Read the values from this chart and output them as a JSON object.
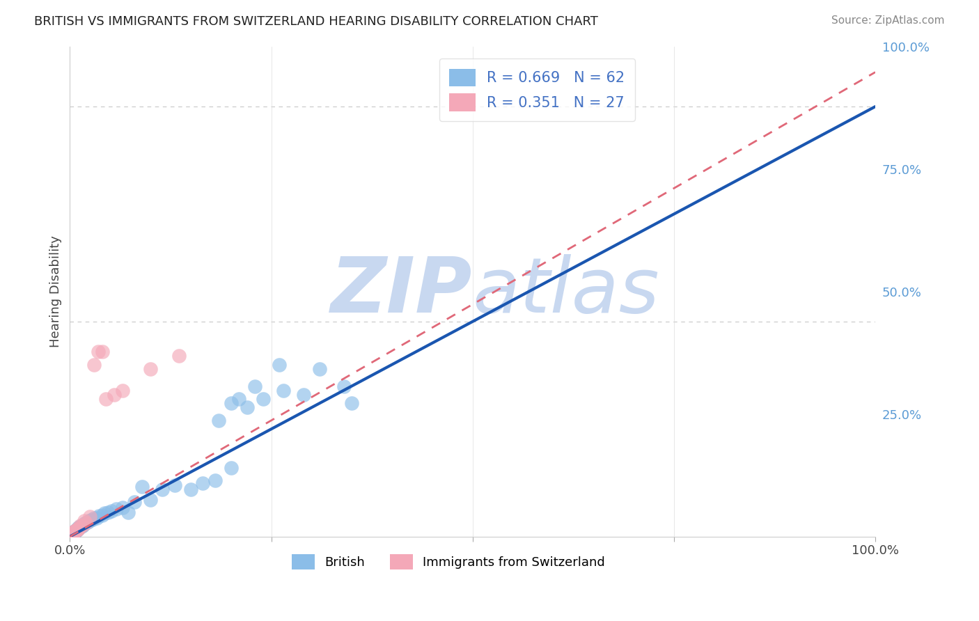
{
  "title": "BRITISH VS IMMIGRANTS FROM SWITZERLAND HEARING DISABILITY CORRELATION CHART",
  "source": "Source: ZipAtlas.com",
  "ylabel": "Hearing Disability",
  "xlim": [
    0,
    1.0
  ],
  "ylim": [
    0,
    0.57
  ],
  "british_R": 0.669,
  "british_N": 62,
  "swiss_R": 0.351,
  "swiss_N": 27,
  "british_color": "#8BBDE8",
  "swiss_color": "#F4A8B8",
  "british_line_color": "#1A56B0",
  "swiss_line_color": "#E06878",
  "background_color": "#FFFFFF",
  "watermark_color": "#C8D8F0",
  "grid_color": "#C8C8C8",
  "british_line_slope": 0.5,
  "british_line_intercept": 0.0,
  "swiss_line_slope": 0.55,
  "swiss_line_intercept": -0.01,
  "british_x": [
    0.001,
    0.002,
    0.002,
    0.003,
    0.003,
    0.004,
    0.004,
    0.005,
    0.005,
    0.005,
    0.006,
    0.006,
    0.007,
    0.007,
    0.008,
    0.008,
    0.009,
    0.01,
    0.01,
    0.011,
    0.012,
    0.013,
    0.014,
    0.015,
    0.016,
    0.018,
    0.02,
    0.022,
    0.024,
    0.026,
    0.028,
    0.03,
    0.033,
    0.036,
    0.04,
    0.043,
    0.047,
    0.052,
    0.058,
    0.065,
    0.072,
    0.08,
    0.09,
    0.1,
    0.115,
    0.13,
    0.15,
    0.165,
    0.18,
    0.2,
    0.22,
    0.24,
    0.265,
    0.29,
    0.31,
    0.34,
    0.185,
    0.2,
    0.21,
    0.23,
    0.26,
    0.35
  ],
  "british_y": [
    0.001,
    0.002,
    0.003,
    0.002,
    0.003,
    0.003,
    0.004,
    0.004,
    0.005,
    0.004,
    0.005,
    0.005,
    0.006,
    0.007,
    0.007,
    0.008,
    0.008,
    0.009,
    0.01,
    0.01,
    0.01,
    0.012,
    0.012,
    0.013,
    0.013,
    0.015,
    0.016,
    0.017,
    0.018,
    0.019,
    0.02,
    0.022,
    0.022,
    0.024,
    0.025,
    0.027,
    0.028,
    0.03,
    0.032,
    0.034,
    0.028,
    0.04,
    0.058,
    0.043,
    0.055,
    0.06,
    0.055,
    0.062,
    0.065,
    0.08,
    0.15,
    0.16,
    0.17,
    0.165,
    0.195,
    0.175,
    0.135,
    0.155,
    0.16,
    0.175,
    0.2,
    0.155
  ],
  "swiss_x": [
    0.001,
    0.002,
    0.002,
    0.003,
    0.004,
    0.005,
    0.005,
    0.006,
    0.007,
    0.007,
    0.008,
    0.009,
    0.01,
    0.011,
    0.013,
    0.015,
    0.018,
    0.02,
    0.025,
    0.03,
    0.035,
    0.04,
    0.045,
    0.055,
    0.065,
    0.1,
    0.135
  ],
  "swiss_y": [
    0.001,
    0.002,
    0.002,
    0.003,
    0.004,
    0.005,
    0.005,
    0.006,
    0.006,
    0.007,
    0.008,
    0.008,
    0.009,
    0.01,
    0.013,
    0.013,
    0.018,
    0.016,
    0.023,
    0.2,
    0.215,
    0.215,
    0.16,
    0.165,
    0.17,
    0.195,
    0.21
  ]
}
